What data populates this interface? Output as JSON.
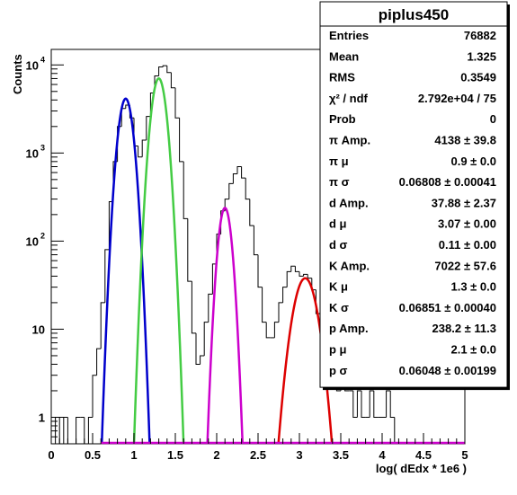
{
  "chart_data": {
    "type": "line",
    "xlabel": "log( dEdx * 1e6 )",
    "ylabel": "Counts",
    "xlim": [
      0,
      5
    ],
    "ylim": [
      0.5,
      15000
    ],
    "yscale": "log",
    "x_ticks": [
      "0",
      "0.5",
      "1",
      "1.5",
      "2",
      "2.5",
      "3",
      "3.5",
      "4",
      "4.5",
      "5"
    ],
    "y_ticks": [
      {
        "value": 1,
        "label": "1",
        "exp": ""
      },
      {
        "value": 10,
        "label": "10",
        "exp": ""
      },
      {
        "value": 100,
        "label": "10",
        "exp": "2"
      },
      {
        "value": 1000,
        "label": "10",
        "exp": "3"
      },
      {
        "value": 10000,
        "label": "10",
        "exp": "4"
      }
    ],
    "histogram": {
      "bin_width": 0.05,
      "color": "#000000",
      "bins": [
        {
          "x": 0.0,
          "y": 0
        },
        {
          "x": 0.05,
          "y": 1
        },
        {
          "x": 0.1,
          "y": 0
        },
        {
          "x": 0.15,
          "y": 1
        },
        {
          "x": 0.2,
          "y": 0
        },
        {
          "x": 0.25,
          "y": 0
        },
        {
          "x": 0.3,
          "y": 1
        },
        {
          "x": 0.35,
          "y": 1
        },
        {
          "x": 0.4,
          "y": 0
        },
        {
          "x": 0.45,
          "y": 1
        },
        {
          "x": 0.5,
          "y": 3
        },
        {
          "x": 0.55,
          "y": 6
        },
        {
          "x": 0.6,
          "y": 20
        },
        {
          "x": 0.65,
          "y": 80
        },
        {
          "x": 0.7,
          "y": 280
        },
        {
          "x": 0.75,
          "y": 800
        },
        {
          "x": 0.8,
          "y": 2000
        },
        {
          "x": 0.85,
          "y": 3200
        },
        {
          "x": 0.9,
          "y": 3500
        },
        {
          "x": 0.95,
          "y": 2500
        },
        {
          "x": 1.0,
          "y": 1200
        },
        {
          "x": 1.05,
          "y": 900
        },
        {
          "x": 1.1,
          "y": 1400
        },
        {
          "x": 1.15,
          "y": 2600
        },
        {
          "x": 1.2,
          "y": 4800
        },
        {
          "x": 1.25,
          "y": 7500
        },
        {
          "x": 1.3,
          "y": 9500
        },
        {
          "x": 1.35,
          "y": 9800
        },
        {
          "x": 1.4,
          "y": 8200
        },
        {
          "x": 1.45,
          "y": 5500
        },
        {
          "x": 1.5,
          "y": 2500
        },
        {
          "x": 1.55,
          "y": 800
        },
        {
          "x": 1.6,
          "y": 180
        },
        {
          "x": 1.65,
          "y": 35
        },
        {
          "x": 1.7,
          "y": 9
        },
        {
          "x": 1.75,
          "y": 4
        },
        {
          "x": 1.8,
          "y": 5
        },
        {
          "x": 1.85,
          "y": 12
        },
        {
          "x": 1.9,
          "y": 25
        },
        {
          "x": 1.95,
          "y": 55
        },
        {
          "x": 2.0,
          "y": 120
        },
        {
          "x": 2.05,
          "y": 220
        },
        {
          "x": 2.1,
          "y": 300
        },
        {
          "x": 2.15,
          "y": 450
        },
        {
          "x": 2.2,
          "y": 580
        },
        {
          "x": 2.25,
          "y": 700
        },
        {
          "x": 2.3,
          "y": 520
        },
        {
          "x": 2.35,
          "y": 300
        },
        {
          "x": 2.4,
          "y": 150
        },
        {
          "x": 2.45,
          "y": 70
        },
        {
          "x": 2.5,
          "y": 30
        },
        {
          "x": 2.55,
          "y": 12
        },
        {
          "x": 2.6,
          "y": 8
        },
        {
          "x": 2.65,
          "y": 8
        },
        {
          "x": 2.7,
          "y": 12
        },
        {
          "x": 2.75,
          "y": 20
        },
        {
          "x": 2.8,
          "y": 30
        },
        {
          "x": 2.85,
          "y": 45
        },
        {
          "x": 2.9,
          "y": 52
        },
        {
          "x": 2.95,
          "y": 45
        },
        {
          "x": 3.0,
          "y": 40
        },
        {
          "x": 3.05,
          "y": 42
        },
        {
          "x": 3.1,
          "y": 38
        },
        {
          "x": 3.15,
          "y": 28
        },
        {
          "x": 3.2,
          "y": 15
        },
        {
          "x": 3.25,
          "y": 8
        },
        {
          "x": 3.3,
          "y": 6
        },
        {
          "x": 3.35,
          "y": 4
        },
        {
          "x": 3.4,
          "y": 3
        },
        {
          "x": 3.45,
          "y": 2
        },
        {
          "x": 3.5,
          "y": 3
        },
        {
          "x": 3.55,
          "y": 2
        },
        {
          "x": 3.6,
          "y": 2
        },
        {
          "x": 3.65,
          "y": 1
        },
        {
          "x": 3.7,
          "y": 2
        },
        {
          "x": 3.75,
          "y": 1
        },
        {
          "x": 3.8,
          "y": 1
        },
        {
          "x": 3.85,
          "y": 2
        },
        {
          "x": 3.9,
          "y": 1
        },
        {
          "x": 3.95,
          "y": 1
        },
        {
          "x": 4.0,
          "y": 1
        },
        {
          "x": 4.05,
          "y": 2
        },
        {
          "x": 4.1,
          "y": 1
        },
        {
          "x": 4.15,
          "y": 0
        },
        {
          "x": 4.2,
          "y": 0
        },
        {
          "x": 4.25,
          "y": 0
        },
        {
          "x": 4.3,
          "y": 0
        },
        {
          "x": 4.35,
          "y": 0
        },
        {
          "x": 4.4,
          "y": 0
        },
        {
          "x": 4.45,
          "y": 0
        },
        {
          "x": 4.5,
          "y": 0
        },
        {
          "x": 4.55,
          "y": 0
        },
        {
          "x": 4.6,
          "y": 0
        },
        {
          "x": 4.65,
          "y": 0
        },
        {
          "x": 4.7,
          "y": 0
        },
        {
          "x": 4.75,
          "y": 0
        },
        {
          "x": 4.8,
          "y": 0
        },
        {
          "x": 4.85,
          "y": 0
        },
        {
          "x": 4.9,
          "y": 0
        },
        {
          "x": 4.95,
          "y": 0
        }
      ]
    },
    "fits": [
      {
        "id": "pi",
        "color": "#0000cc",
        "amp": 4138,
        "mu": 0.9,
        "sigma": 0.06808
      },
      {
        "id": "k",
        "color": "#44cc44",
        "amp": 7022,
        "mu": 1.3,
        "sigma": 0.06851
      },
      {
        "id": "p",
        "color": "#cc00cc",
        "amp": 238.2,
        "mu": 2.1,
        "sigma": 0.06048
      },
      {
        "id": "d",
        "color": "#dd0000",
        "amp": 37.88,
        "mu": 3.07,
        "sigma": 0.11
      },
      {
        "id": "total",
        "color": "#cc00cc",
        "amp": 0,
        "mu": 0,
        "sigma": 1
      }
    ],
    "stats_box": {
      "title": "piplus450",
      "rows": [
        {
          "label": "Entries",
          "value": "76882"
        },
        {
          "label": "Mean",
          "value": "1.325"
        },
        {
          "label": "RMS",
          "value": "0.3549"
        },
        {
          "label": "χ² / ndf",
          "value": "2.792e+04 / 75"
        },
        {
          "label": "Prob",
          "value": "0"
        },
        {
          "label": "π Amp.",
          "value": "4138 ± 39.8"
        },
        {
          "label": "π μ",
          "value": "0.9 ± 0.0"
        },
        {
          "label": "π σ",
          "value": "0.06808 ± 0.00041"
        },
        {
          "label": "d Amp.",
          "value": "37.88 ± 2.37"
        },
        {
          "label": "d μ",
          "value": "3.07 ± 0.00"
        },
        {
          "label": "d σ",
          "value": "0.11 ± 0.00"
        },
        {
          "label": "K Amp.",
          "value": "7022 ± 57.6"
        },
        {
          "label": "K μ",
          "value": "1.3 ± 0.0"
        },
        {
          "label": "K σ",
          "value": "0.06851 ± 0.00040"
        },
        {
          "label": "p Amp.",
          "value": "238.2 ± 11.3"
        },
        {
          "label": "p μ",
          "value": "2.1 ± 0.0"
        },
        {
          "label": "p σ",
          "value": "0.06048 ± 0.00199"
        }
      ]
    }
  }
}
